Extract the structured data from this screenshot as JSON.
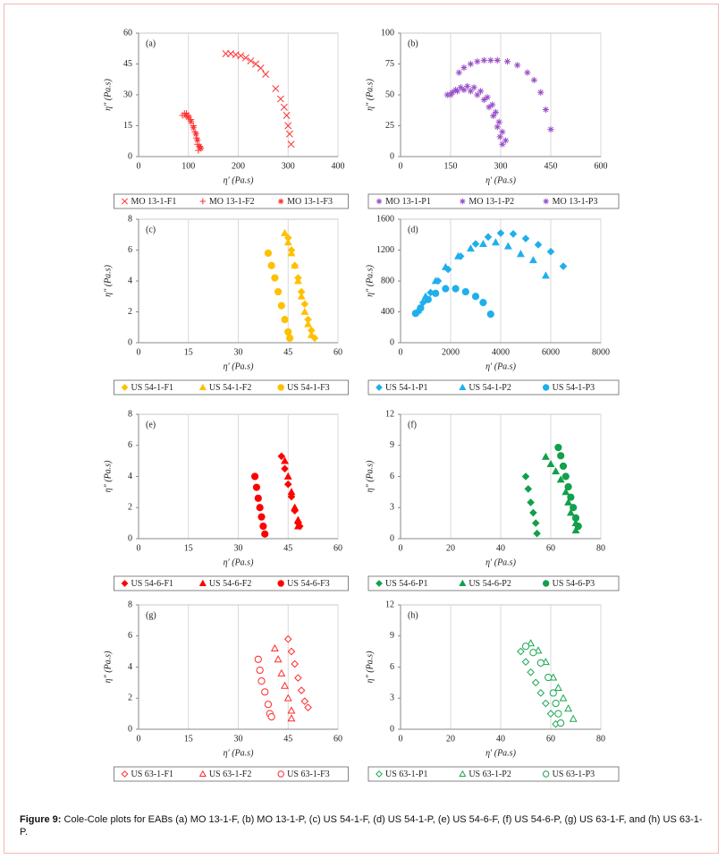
{
  "chart_data": [
    {
      "type": "scatter",
      "panel_label": "(a)",
      "x_label": "η′ (Pa.s)",
      "y_label": "η″ (Pa.s)",
      "xlim": [
        0,
        400
      ],
      "xticks": [
        0,
        100,
        200,
        300,
        400
      ],
      "ylim": [
        0,
        60
      ],
      "yticks": [
        0,
        15,
        30,
        45,
        60
      ],
      "grid": "x",
      "series": [
        {
          "name": "MO 13-1-F1",
          "color": "#ff3030",
          "marker": "x",
          "filled": true,
          "x": [
            175,
            185,
            195,
            205,
            215,
            225,
            235,
            245,
            255,
            275,
            285,
            292,
            297,
            300,
            303,
            306
          ],
          "y": [
            50,
            50,
            49.5,
            49,
            48,
            46.5,
            45,
            43,
            40,
            33,
            28,
            24,
            20,
            15,
            11,
            6
          ]
        },
        {
          "name": "MO 13-1-F2",
          "color": "#ff3030",
          "marker": "plus",
          "filled": true,
          "x": [
            88,
            92,
            96,
            100,
            105,
            110,
            113,
            116,
            118,
            120
          ],
          "y": [
            20,
            21,
            21,
            20,
            18,
            15,
            12,
            9,
            6,
            3
          ]
        },
        {
          "name": "MO 13-1-F3",
          "color": "#ff3030",
          "marker": "star",
          "filled": true,
          "x": [
            95,
            100,
            105,
            110,
            115,
            118,
            122,
            125
          ],
          "y": [
            20,
            19,
            17,
            14,
            11,
            8,
            5,
            4
          ]
        }
      ]
    },
    {
      "type": "scatter",
      "panel_label": "(b)",
      "x_label": "η′ (Pa.s)",
      "y_label": "η″ (Pa.s)",
      "xlim": [
        0,
        600
      ],
      "xticks": [
        0,
        150,
        300,
        450,
        600
      ],
      "ylim": [
        0,
        100
      ],
      "yticks": [
        0,
        25,
        50,
        75,
        100
      ],
      "grid": "x",
      "series": [
        {
          "name": "MO 13-1-P1",
          "color": "#9b4fc8",
          "marker": "star",
          "filled": true,
          "x": [
            175,
            190,
            210,
            230,
            250,
            270,
            290,
            320,
            350,
            380,
            400,
            420,
            435,
            450
          ],
          "y": [
            68,
            72,
            75,
            77,
            78,
            78,
            78,
            77,
            74,
            68,
            62,
            52,
            38,
            22
          ]
        },
        {
          "name": "MO 13-1-P2",
          "color": "#9b4fc8",
          "marker": "star",
          "filled": true,
          "x": [
            150,
            165,
            180,
            200,
            220,
            240,
            260,
            275,
            285,
            295,
            305,
            315
          ],
          "y": [
            50,
            54,
            56,
            57,
            56,
            53,
            48,
            42,
            36,
            28,
            20,
            13
          ]
        },
        {
          "name": "MO 13-1-P3",
          "color": "#9b4fc8",
          "marker": "star",
          "filled": true,
          "x": [
            140,
            155,
            170,
            190,
            210,
            230,
            250,
            265,
            278,
            290,
            298,
            305
          ],
          "y": [
            50,
            52,
            53,
            54,
            53,
            50,
            46,
            40,
            33,
            24,
            16,
            10
          ]
        }
      ]
    },
    {
      "type": "scatter",
      "panel_label": "(c)",
      "x_label": "η′ (Pa.s)",
      "y_label": "η″ (Pa.s)",
      "xlim": [
        0,
        60
      ],
      "xticks": [
        0,
        15,
        30,
        45,
        60
      ],
      "ylim": [
        0,
        8
      ],
      "yticks": [
        0,
        2,
        4,
        6,
        8
      ],
      "grid": "x",
      "series": [
        {
          "name": "US 54-1-F1",
          "color": "#ffc000",
          "marker": "diamond",
          "filled": true,
          "x": [
            45,
            46,
            47,
            48,
            49,
            50,
            51,
            52,
            53
          ],
          "y": [
            6.8,
            6,
            5,
            4.2,
            3.3,
            2.5,
            1.5,
            0.8,
            0.3
          ]
        },
        {
          "name": "US 54-1-F2",
          "color": "#ffc000",
          "marker": "triangle",
          "filled": true,
          "x": [
            44,
            45,
            46,
            47,
            48,
            49,
            50,
            51,
            52
          ],
          "y": [
            7.1,
            6.5,
            5.8,
            5,
            4,
            3,
            2,
            1.2,
            0.5
          ]
        },
        {
          "name": "US 54-1-F3",
          "color": "#ffc000",
          "marker": "circle",
          "filled": true,
          "x": [
            39,
            40,
            41,
            42,
            43,
            44,
            45,
            45.5
          ],
          "y": [
            5.8,
            5,
            4.2,
            3.3,
            2.4,
            1.5,
            0.7,
            0.3
          ]
        }
      ]
    },
    {
      "type": "scatter",
      "panel_label": "(d)",
      "x_label": "η′ (Pa.s)",
      "y_label": "η″ (Pa.s)",
      "xlim": [
        0,
        8000
      ],
      "xticks": [
        0,
        2000,
        4000,
        6000,
        8000
      ],
      "ylim": [
        0,
        1600
      ],
      "yticks": [
        0,
        400,
        800,
        1200,
        1600
      ],
      "grid": "x",
      "series": [
        {
          "name": "US 54-1-P1",
          "color": "#1fb0ec",
          "marker": "diamond",
          "filled": true,
          "x": [
            700,
            900,
            1200,
            1500,
            1900,
            2400,
            3000,
            3500,
            4000,
            4500,
            5000,
            5500,
            6000,
            6500
          ],
          "y": [
            400,
            520,
            650,
            800,
            950,
            1120,
            1280,
            1370,
            1420,
            1410,
            1350,
            1270,
            1180,
            990
          ]
        },
        {
          "name": "US 54-1-P2",
          "color": "#1fb0ec",
          "marker": "triangle",
          "filled": true,
          "x": [
            700,
            1000,
            1400,
            1800,
            2300,
            2800,
            3300,
            3800,
            4300,
            4800,
            5300,
            5800
          ],
          "y": [
            420,
            600,
            800,
            980,
            1120,
            1220,
            1280,
            1300,
            1250,
            1150,
            1070,
            870
          ]
        },
        {
          "name": "US 54-1-P3",
          "color": "#1fb0ec",
          "marker": "circle",
          "filled": true,
          "x": [
            600,
            800,
            1100,
            1400,
            1800,
            2200,
            2600,
            3000,
            3300,
            3600
          ],
          "y": [
            380,
            450,
            560,
            640,
            700,
            700,
            660,
            600,
            520,
            370
          ]
        }
      ]
    },
    {
      "type": "scatter",
      "panel_label": "(e)",
      "x_label": "η′ (Pa.s)",
      "y_label": "η″ (Pa.s)",
      "xlim": [
        0,
        60
      ],
      "xticks": [
        0,
        15,
        30,
        45,
        60
      ],
      "ylim": [
        0,
        8
      ],
      "yticks": [
        0,
        2,
        4,
        6,
        8
      ],
      "grid": "x",
      "series": [
        {
          "name": "US 54-6-F1",
          "color": "#ff0000",
          "marker": "diamond",
          "filled": true,
          "x": [
            43,
            44,
            45,
            46,
            47,
            48,
            48.5
          ],
          "y": [
            5.3,
            4.5,
            3.5,
            2.7,
            1.8,
            1,
            0.8
          ]
        },
        {
          "name": "US 54-6-F2",
          "color": "#ff0000",
          "marker": "triangle",
          "filled": true,
          "x": [
            44,
            45,
            46,
            47,
            48,
            48
          ],
          "y": [
            5,
            4,
            3,
            2,
            1.2,
            0.8
          ]
        },
        {
          "name": "US 54-6-F3",
          "color": "#ff0000",
          "marker": "circle",
          "filled": true,
          "x": [
            35,
            35.5,
            36,
            36.5,
            37,
            37.5,
            38
          ],
          "y": [
            4,
            3.3,
            2.6,
            2,
            1.4,
            0.8,
            0.3
          ]
        }
      ]
    },
    {
      "type": "scatter",
      "panel_label": "(f)",
      "x_label": "η′ (Pa.s)",
      "y_label": "η″ (Pa.s)",
      "xlim": [
        0,
        80
      ],
      "xticks": [
        0,
        20,
        40,
        60,
        80
      ],
      "ylim": [
        0,
        12
      ],
      "yticks": [
        0,
        3,
        6,
        9,
        12
      ],
      "grid": "x",
      "series": [
        {
          "name": "US 54-6-P1",
          "color": "#12a04a",
          "marker": "diamond",
          "filled": true,
          "x": [
            50,
            51,
            52,
            53,
            54,
            54.5
          ],
          "y": [
            6,
            4.8,
            3.5,
            2.5,
            1.5,
            0.5
          ]
        },
        {
          "name": "US 54-6-P2",
          "color": "#12a04a",
          "marker": "triangle",
          "filled": true,
          "x": [
            58,
            60,
            62,
            64,
            66,
            67,
            68,
            70,
            70
          ],
          "y": [
            7.9,
            7.2,
            6.5,
            5.7,
            4.5,
            3.5,
            2.5,
            1.5,
            0.8
          ]
        },
        {
          "name": "US 54-6-P3",
          "color": "#12a04a",
          "marker": "circle",
          "filled": true,
          "x": [
            63,
            64,
            65,
            66,
            67,
            68,
            69,
            70,
            71
          ],
          "y": [
            8.8,
            8,
            7,
            6,
            5,
            4,
            3,
            2,
            1.2
          ]
        }
      ]
    },
    {
      "type": "scatter",
      "panel_label": "(g)",
      "x_label": "η′ (Pa.s)",
      "y_label": "η″ (Pa.s)",
      "xlim": [
        0,
        60
      ],
      "xticks": [
        0,
        15,
        30,
        45,
        60
      ],
      "ylim": [
        0,
        8
      ],
      "yticks": [
        0,
        2,
        4,
        6,
        8
      ],
      "grid": "x",
      "series": [
        {
          "name": "US 63-1-F1",
          "color": "#ff2a2a",
          "marker": "diamond",
          "filled": false,
          "x": [
            45,
            46,
            47,
            48,
            49,
            50,
            51
          ],
          "y": [
            5.8,
            5,
            4.2,
            3.3,
            2.5,
            1.8,
            1.4
          ]
        },
        {
          "name": "US 63-1-F2",
          "color": "#ff2a2a",
          "marker": "triangle",
          "filled": false,
          "x": [
            41,
            42,
            43,
            44,
            45,
            46,
            46
          ],
          "y": [
            5.2,
            4.5,
            3.6,
            2.8,
            2,
            1.2,
            0.7
          ]
        },
        {
          "name": "US 63-1-F3",
          "color": "#ff2a2a",
          "marker": "circle",
          "filled": false,
          "x": [
            36,
            36.5,
            37,
            38,
            39,
            39.5,
            40
          ],
          "y": [
            4.5,
            3.8,
            3.1,
            2.4,
            1.6,
            1,
            0.8
          ]
        }
      ]
    },
    {
      "type": "scatter",
      "panel_label": "(h)",
      "x_label": "η′ (Pa.s)",
      "y_label": "η″ (Pa.s)",
      "xlim": [
        0,
        80
      ],
      "xticks": [
        0,
        20,
        40,
        60,
        80
      ],
      "ylim": [
        0,
        12
      ],
      "yticks": [
        0,
        3,
        6,
        9,
        12
      ],
      "grid": "x",
      "series": [
        {
          "name": "US 63-1-P1",
          "color": "#16a84e",
          "marker": "diamond",
          "filled": false,
          "x": [
            48,
            50,
            52,
            54,
            56,
            58,
            60,
            62
          ],
          "y": [
            7.5,
            6.5,
            5.5,
            4.5,
            3.5,
            2.5,
            1.5,
            0.5
          ]
        },
        {
          "name": "US 63-1-P2",
          "color": "#16a84e",
          "marker": "triangle",
          "filled": false,
          "x": [
            52,
            55,
            58,
            61,
            63,
            65,
            67,
            69
          ],
          "y": [
            8.3,
            7.6,
            6.5,
            5,
            4,
            3,
            2,
            1
          ]
        },
        {
          "name": "US 63-1-P3",
          "color": "#16a84e",
          "marker": "circle",
          "filled": false,
          "x": [
            50,
            53,
            56,
            59,
            61,
            62,
            63,
            64
          ],
          "y": [
            8,
            7.4,
            6.4,
            5,
            3.5,
            2.5,
            1.5,
            0.6
          ]
        }
      ]
    }
  ],
  "caption": {
    "label": "Figure 9:",
    "text": "Cole-Cole plots for EABs (a) MO 13-1-F, (b) MO 13-1-P, (c) US 54-1-F, (d) US 54-1-P, (e) US 54-6-F, (f) US 54-6-P, (g) US 63-1-F, and (h) US 63-1-P."
  }
}
